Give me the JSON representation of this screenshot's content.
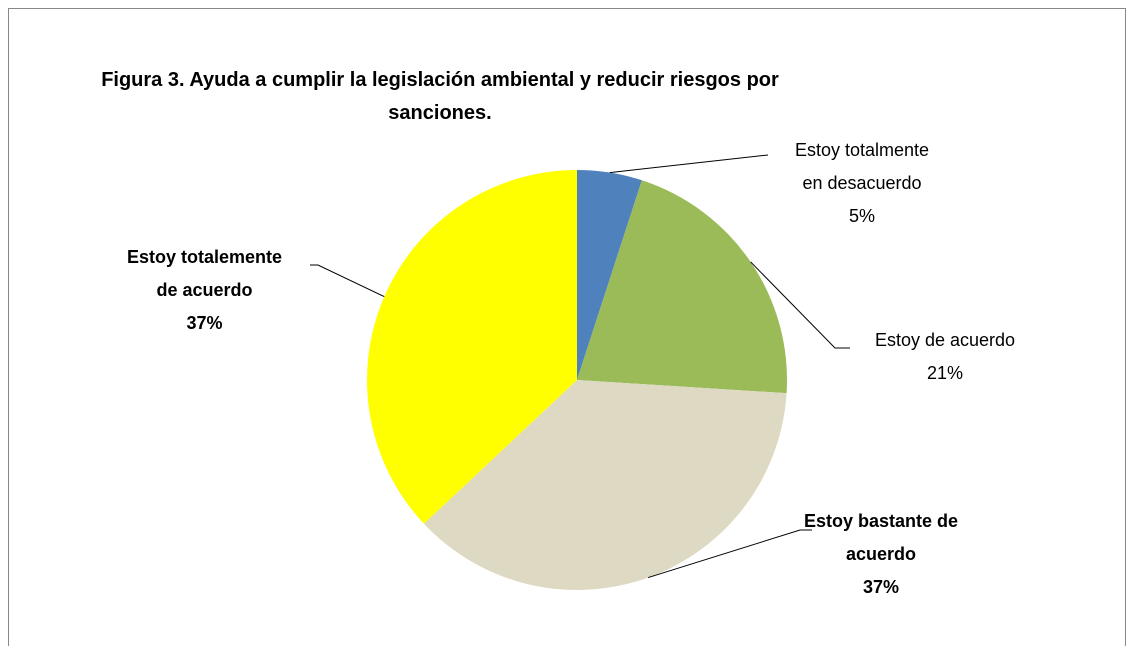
{
  "chart_data": {
    "type": "pie",
    "title": "Figura 3. Ayuda a cumplir la legislación ambiental y reducir riesgos por sanciones.",
    "categories": [
      "Estoy totalmente en desacuerdo",
      "Estoy de acuerdo",
      "Estoy bastante de acuerdo",
      "Estoy totalemente de acuerdo"
    ],
    "values": [
      5,
      21,
      37,
      37
    ],
    "value_labels": [
      "5%",
      "21%",
      "37%",
      "37%"
    ],
    "colors": [
      "#4f81bd",
      "#9bbb59",
      "#ddd9c3",
      "#ffff00"
    ]
  }
}
